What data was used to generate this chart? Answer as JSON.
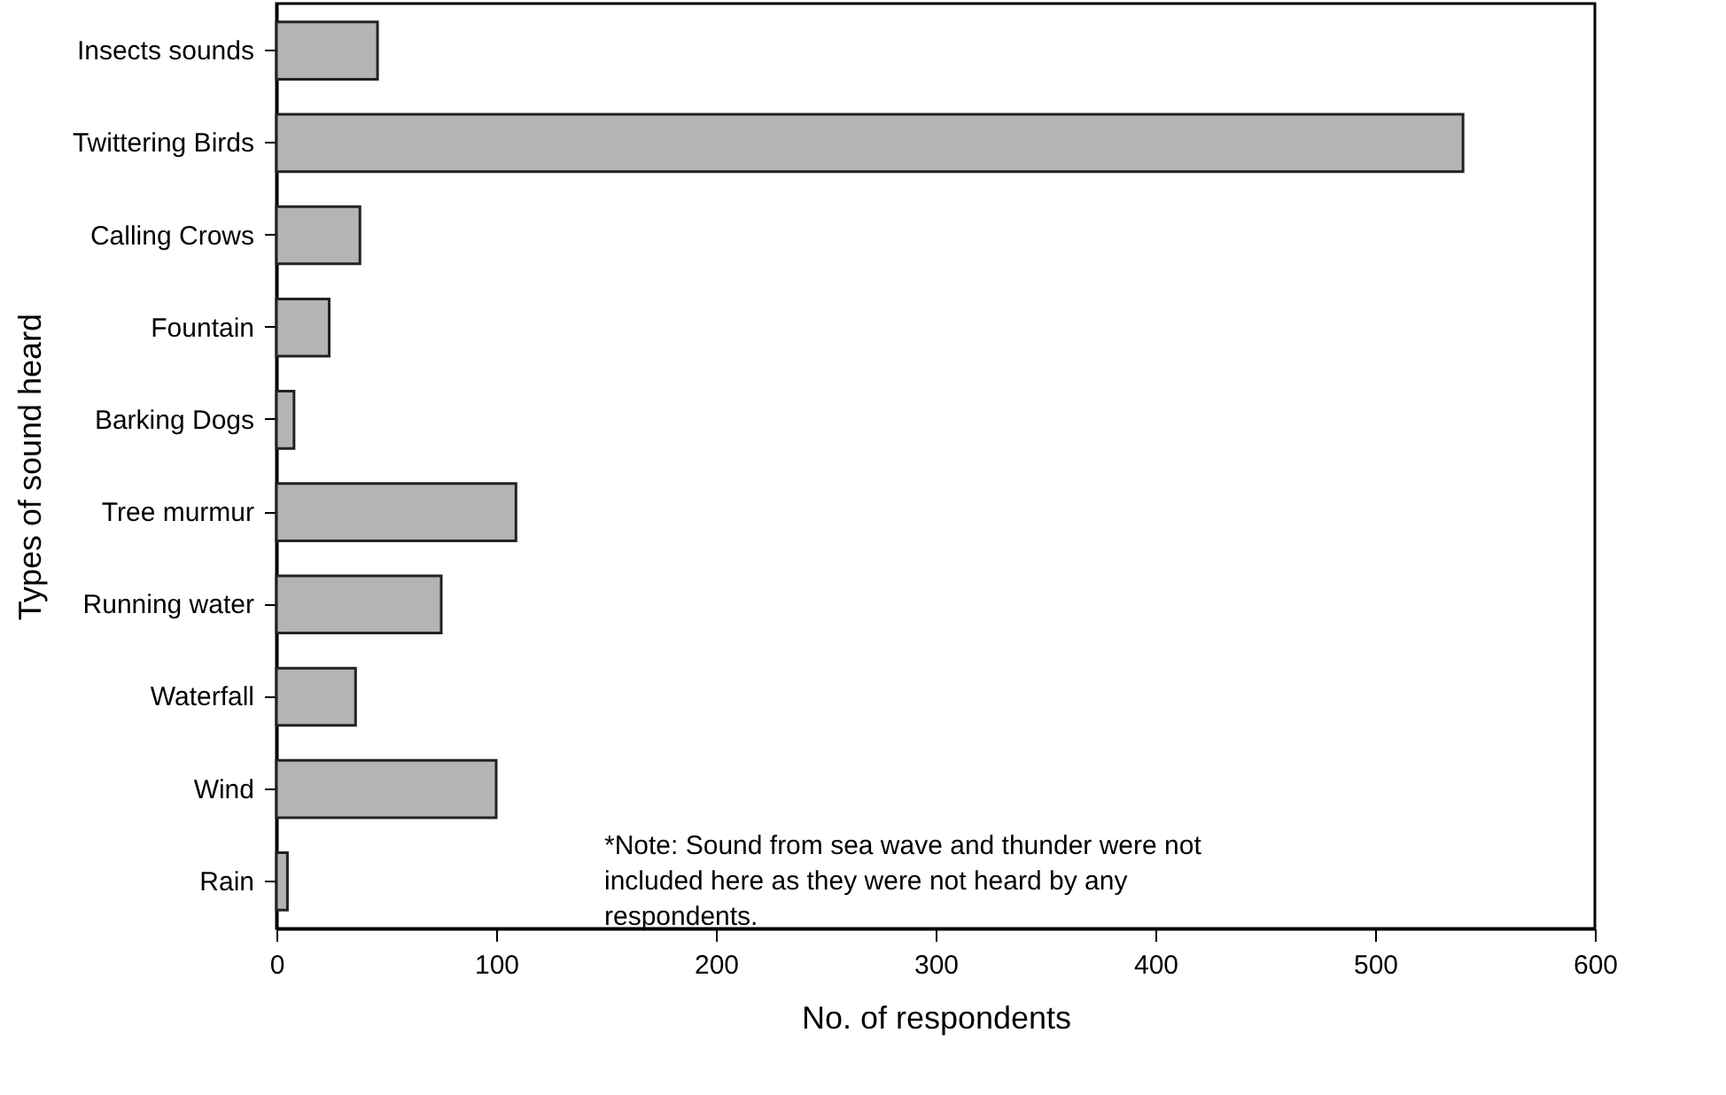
{
  "chart_data": {
    "type": "bar",
    "orientation": "horizontal",
    "xlabel": "No. of respondents",
    "ylabel": "Types of sound heard",
    "categories": [
      "Insects sounds",
      "Twittering Birds",
      "Calling Crows",
      "Fountain",
      "Barking Dogs",
      "Tree murmur",
      "Running water",
      "Waterfall",
      "Wind",
      "Rain"
    ],
    "values": [
      46,
      540,
      38,
      24,
      8,
      109,
      75,
      36,
      100,
      5
    ],
    "color": "#b4b4b4",
    "xlim": [
      0,
      600
    ],
    "xticks": [
      0,
      100,
      200,
      300,
      400,
      500,
      600
    ],
    "grid": false,
    "annotations": [
      "*Note: Sound from sea wave and thunder were not included here as they were not heard by any respondents."
    ]
  }
}
